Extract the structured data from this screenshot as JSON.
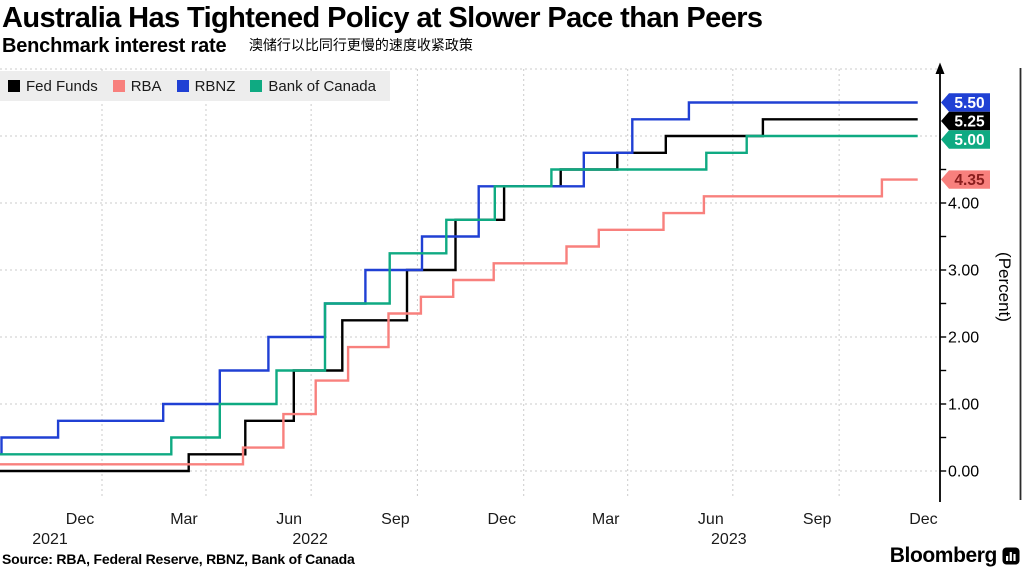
{
  "header": {
    "title": "Australia Has Tightened Policy at Slower Pace than Peers",
    "subtitle": "Benchmark interest rate",
    "subtitle_zh": "澳储行以比同行更慢的速度收紧政策"
  },
  "footer": {
    "source": "Source: RBA, Federal Reserve, RBNZ, Bank of Canada",
    "brand": "Bloomberg",
    "brand_icon": "bloomberg-bars-icon"
  },
  "colors": {
    "fed": "#000000",
    "rba": "#f8807d",
    "rbnz": "#2040d4",
    "boc": "#0faa82",
    "grid": "#cbcbcb",
    "axis": "#000000",
    "legend_bg": "#ededed",
    "rba_badge_text": "#8b1e1e"
  },
  "chart_data": {
    "type": "line",
    "step": true,
    "title": "Benchmark interest rate",
    "ylabel": "(Percent)",
    "ylim": [
      0,
      6
    ],
    "grid": true,
    "legend_position": "top-left",
    "x_domain": [
      "2021-10-01",
      "2023-12-08"
    ],
    "end_date": "2023-12-08",
    "y_ticks": [
      {
        "value": 0,
        "label": "0.00"
      },
      {
        "value": 1,
        "label": "1.00"
      },
      {
        "value": 2,
        "label": "2.00"
      },
      {
        "value": 3,
        "label": "3.00"
      },
      {
        "value": 4,
        "label": "4.00"
      }
    ],
    "y_grid_values": [
      0,
      1,
      2,
      3,
      4,
      5,
      6
    ],
    "y_minor_tick_step": 0.5,
    "y_minor_tick_max": 4.5,
    "x_axis": {
      "ticks": [
        {
          "label": "Dec",
          "grid_date": "2022-01-01"
        },
        {
          "label": "Mar",
          "grid_date": "2022-04-01"
        },
        {
          "label": "Jun",
          "grid_date": "2022-07-01"
        },
        {
          "label": "Sep",
          "grid_date": "2022-10-01"
        },
        {
          "label": "Dec",
          "grid_date": "2023-01-01"
        },
        {
          "label": "Mar",
          "grid_date": "2023-04-01"
        },
        {
          "label": "Jun",
          "grid_date": "2023-07-01"
        },
        {
          "label": "Sep",
          "grid_date": "2023-10-01"
        },
        {
          "label": "Dec",
          "grid_date": "2024-01-01"
        }
      ],
      "years": [
        {
          "label": "2021",
          "month_index": 0,
          "dx": -30
        },
        {
          "label": "2022",
          "month_index": 2,
          "dx": 21
        },
        {
          "label": "2023",
          "month_index": 6,
          "dx": 18
        }
      ]
    },
    "series": [
      {
        "name": "Fed Funds",
        "color": "#000000",
        "end_label": "5.25",
        "badge_bg": "#000000",
        "badge_text_color": "#ffffff",
        "points": [
          [
            "2021-10-01",
            0.0
          ],
          [
            "2022-03-17",
            0.25
          ],
          [
            "2022-05-05",
            0.75
          ],
          [
            "2022-06-16",
            1.5
          ],
          [
            "2022-07-28",
            2.25
          ],
          [
            "2022-09-22",
            3.0
          ],
          [
            "2022-11-03",
            3.75
          ],
          [
            "2022-12-15",
            4.25
          ],
          [
            "2023-02-02",
            4.5
          ],
          [
            "2023-03-23",
            4.75
          ],
          [
            "2023-05-04",
            5.0
          ],
          [
            "2023-07-27",
            5.25
          ]
        ]
      },
      {
        "name": "RBA",
        "color": "#f8807d",
        "end_label": "4.35",
        "badge_bg": "#f8807d",
        "badge_text_color": "#8b1e1e",
        "points": [
          [
            "2021-10-01",
            0.1
          ],
          [
            "2022-05-03",
            0.35
          ],
          [
            "2022-06-07",
            0.85
          ],
          [
            "2022-07-05",
            1.35
          ],
          [
            "2022-08-02",
            1.85
          ],
          [
            "2022-09-06",
            2.35
          ],
          [
            "2022-10-04",
            2.6
          ],
          [
            "2022-11-01",
            2.85
          ],
          [
            "2022-12-06",
            3.1
          ],
          [
            "2023-02-07",
            3.35
          ],
          [
            "2023-03-07",
            3.6
          ],
          [
            "2023-05-02",
            3.85
          ],
          [
            "2023-06-06",
            4.1
          ],
          [
            "2023-11-07",
            4.35
          ]
        ]
      },
      {
        "name": "RBNZ",
        "color": "#2040d4",
        "end_label": "5.50",
        "badge_bg": "#2040d4",
        "badge_text_color": "#ffffff",
        "points": [
          [
            "2021-10-01",
            0.25
          ],
          [
            "2021-10-06",
            0.5
          ],
          [
            "2021-11-24",
            0.75
          ],
          [
            "2022-02-23",
            1.0
          ],
          [
            "2022-04-13",
            1.5
          ],
          [
            "2022-05-25",
            2.0
          ],
          [
            "2022-07-13",
            2.5
          ],
          [
            "2022-08-17",
            3.0
          ],
          [
            "2022-10-05",
            3.5
          ],
          [
            "2022-11-23",
            4.25
          ],
          [
            "2023-02-22",
            4.75
          ],
          [
            "2023-04-05",
            5.25
          ],
          [
            "2023-05-24",
            5.5
          ]
        ]
      },
      {
        "name": "Bank of Canada",
        "color": "#0faa82",
        "end_label": "5.00",
        "badge_bg": "#0faa82",
        "badge_text_color": "#ffffff",
        "points": [
          [
            "2021-10-01",
            0.25
          ],
          [
            "2022-03-02",
            0.5
          ],
          [
            "2022-04-13",
            1.0
          ],
          [
            "2022-06-01",
            1.5
          ],
          [
            "2022-07-13",
            2.5
          ],
          [
            "2022-09-07",
            3.25
          ],
          [
            "2022-10-26",
            3.75
          ],
          [
            "2022-12-07",
            4.25
          ],
          [
            "2023-01-25",
            4.5
          ],
          [
            "2023-06-08",
            4.75
          ],
          [
            "2023-07-13",
            5.0
          ]
        ]
      }
    ]
  }
}
